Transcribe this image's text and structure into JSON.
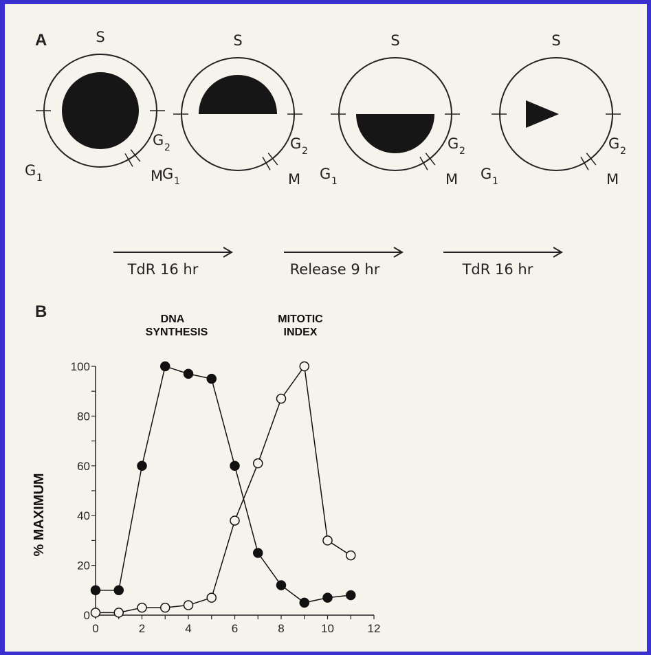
{
  "panel_a": {
    "label": "A",
    "circle_labels": {
      "s": "S",
      "g1": "G",
      "g1_sub": "1",
      "g2": "G",
      "g2_sub": "2",
      "m": "M"
    },
    "circle_fills": [
      "full-disc",
      "upper-half",
      "lower-half",
      "wedge"
    ],
    "steps": [
      "TdR 16 hr",
      "Release 9 hr",
      "TdR 16 hr"
    ]
  },
  "panel_b": {
    "label": "B",
    "header_dna_line1": "DNA",
    "header_dna_line2": "SYNTHESIS",
    "header_mitotic_line1": "MITOTIC",
    "header_mitotic_line2": "INDEX"
  },
  "chart_data": {
    "type": "line",
    "title": "",
    "xlabel": "",
    "ylabel": "% MAXIMUM",
    "xlim": [
      0,
      12
    ],
    "ylim": [
      0,
      100
    ],
    "x_ticks": [
      0,
      2,
      4,
      6,
      8,
      10,
      12
    ],
    "y_ticks": [
      0,
      20,
      40,
      60,
      80,
      100
    ],
    "grid": false,
    "series": [
      {
        "name": "DNA SYNTHESIS",
        "marker": "filled-circle",
        "color": "#111111",
        "x": [
          0,
          1,
          2,
          3,
          4,
          5,
          6,
          7,
          8,
          9,
          10,
          11
        ],
        "y": [
          10,
          10,
          60,
          100,
          97,
          95,
          60,
          25,
          12,
          5,
          7,
          8
        ]
      },
      {
        "name": "MITOTIC INDEX",
        "marker": "open-circle",
        "color": "#111111",
        "x": [
          0,
          1,
          2,
          3,
          4,
          5,
          6,
          7,
          8,
          9,
          10,
          11
        ],
        "y": [
          1,
          1,
          3,
          3,
          4,
          7,
          38,
          61,
          87,
          100,
          30,
          24
        ]
      }
    ]
  }
}
